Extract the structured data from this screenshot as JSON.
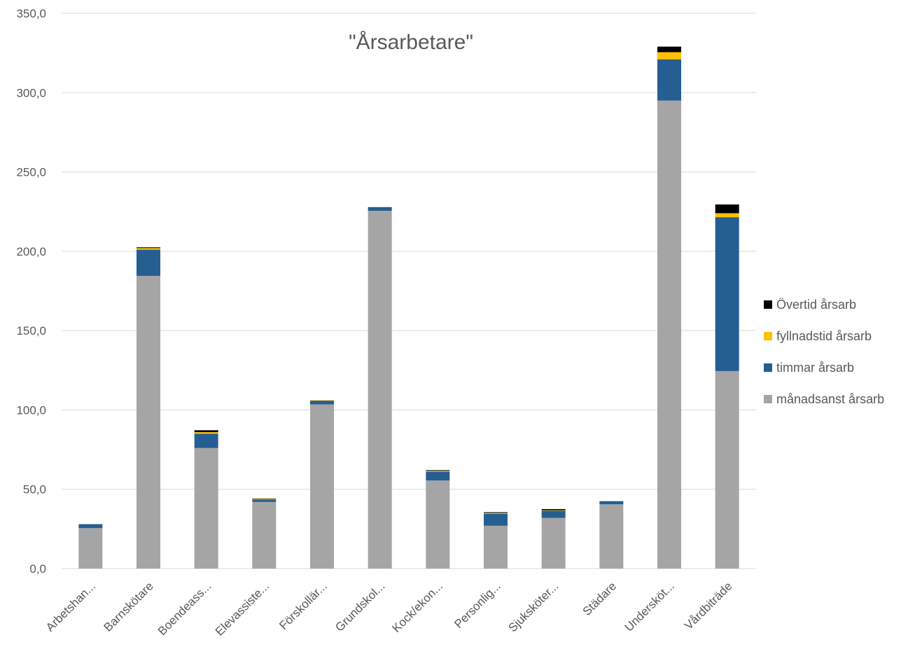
{
  "chart_data": {
    "type": "bar",
    "stacked": true,
    "title": "\"Årsarbetare\"",
    "xlabel": "",
    "ylabel": "",
    "ylim": [
      0,
      350
    ],
    "y_ticks": [
      "0,0",
      "50,0",
      "100,0",
      "150,0",
      "200,0",
      "250,0",
      "300,0",
      "350,0"
    ],
    "grid": true,
    "legend_position": "right",
    "categories": [
      "Arbetshan...",
      "Barnskötare",
      "Boendeass...",
      "Elevassiste...",
      "Förskollär...",
      "Grundskol...",
      "Kock/ekon...",
      "Personlig...",
      "Sjuksköter...",
      "Städare",
      "Undersköt...",
      "Vårdbiträde"
    ],
    "series": [
      {
        "name": "månadsanst årsarb",
        "color": "#a5a5a5",
        "values": [
          25.5,
          184.5,
          76.0,
          42.0,
          103.5,
          225.5,
          55.5,
          27.0,
          32.0,
          40.5,
          295.0,
          124.5
        ]
      },
      {
        "name": "timmar årsarb",
        "color": "#255e91",
        "values": [
          2.5,
          16.5,
          9.0,
          1.5,
          2.0,
          2.0,
          5.5,
          7.5,
          4.5,
          2.0,
          26.0,
          97.0
        ]
      },
      {
        "name": "fyllnadstid årsarb",
        "color": "#ffc000",
        "values": [
          0.0,
          1.0,
          1.0,
          0.5,
          0.3,
          0.2,
          0.5,
          0.5,
          0.3,
          0.0,
          4.5,
          2.5
        ]
      },
      {
        "name": "Övertid årsarb",
        "color": "#000000",
        "values": [
          0.0,
          0.5,
          1.2,
          0.2,
          0.2,
          0.1,
          0.5,
          0.5,
          0.7,
          0.0,
          3.5,
          5.5
        ]
      }
    ]
  }
}
